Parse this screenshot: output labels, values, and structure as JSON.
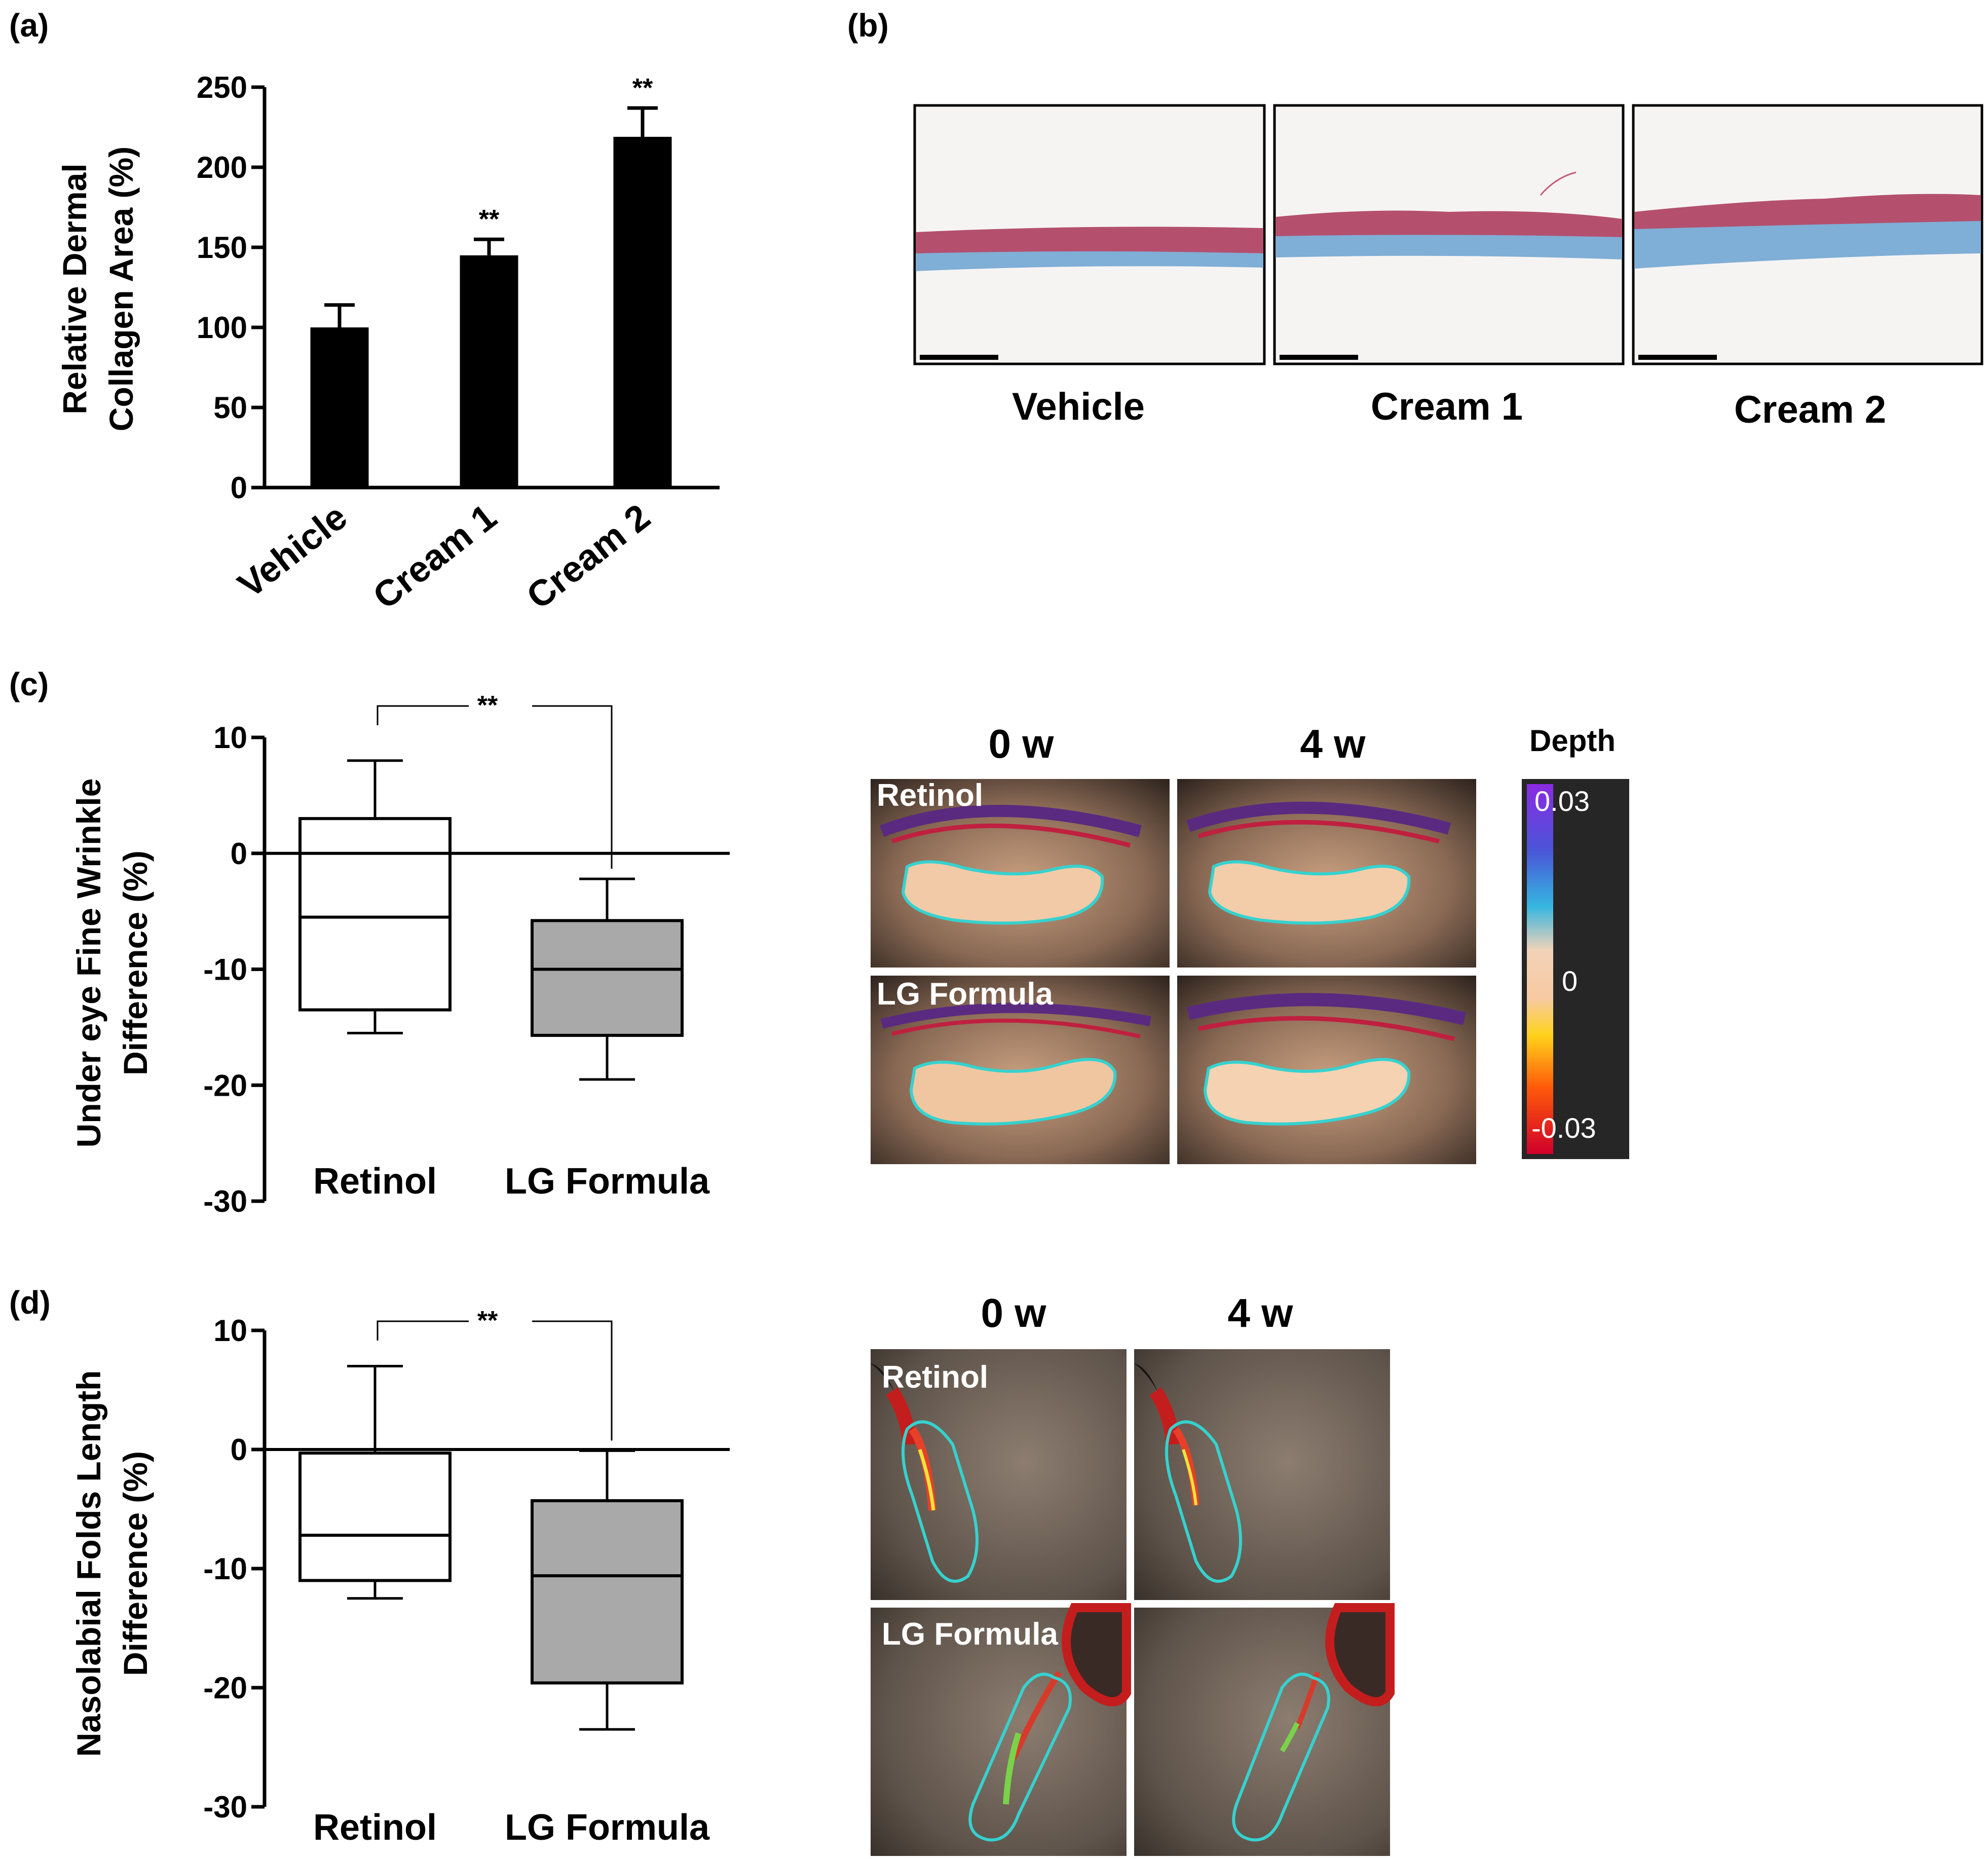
{
  "panel_labels": {
    "a": "(a)",
    "b": "(b)",
    "c": "(c)",
    "d": "(d)"
  },
  "chart_data": [
    {
      "type": "bar",
      "panel": "(a)",
      "categories": [
        "Vehicle",
        "Cream 1",
        "Cream 2"
      ],
      "values": [
        100,
        145,
        219
      ],
      "errors": [
        14,
        10,
        18
      ],
      "significance": [
        "",
        "**",
        "**"
      ],
      "ylabel_line1": "Relative Dermal",
      "ylabel_line2": "Collagen Area (%)",
      "ylim": [
        0,
        250
      ],
      "yticks": [
        0,
        50,
        100,
        150,
        200,
        250
      ],
      "colors": {
        "bar": "#000000"
      }
    },
    {
      "type": "boxplot",
      "panel": "(c)",
      "categories": [
        "Retinol",
        "LG Formula"
      ],
      "boxes": [
        {
          "whisker_low": -15.5,
          "q1": -13.5,
          "median": -5.5,
          "q3": 3,
          "whisker_high": 8
        },
        {
          "whisker_low": -19.5,
          "q1": -15.7,
          "median": -10,
          "q3": -5.8,
          "whisker_high": -2.2
        }
      ],
      "ylabel_line1": "Under eye Fine Wrinkle",
      "ylabel_line2": "Difference (%)",
      "ylim": [
        -30,
        10
      ],
      "yticks": [
        10,
        0,
        -10,
        -20,
        -30
      ],
      "significance": "**",
      "colors": {
        "box1": "#ffffff",
        "box2": "#a9a9a9"
      }
    },
    {
      "type": "boxplot",
      "panel": "(d)",
      "categories": [
        "Retinol",
        "LG Formula"
      ],
      "boxes": [
        {
          "whisker_low": -12.5,
          "q1": -11,
          "median": -7.2,
          "q3": -0.3,
          "whisker_high": 7
        },
        {
          "whisker_low": -23.5,
          "q1": -19.6,
          "median": -10.6,
          "q3": -4.3,
          "whisker_high": -0.1
        }
      ],
      "ylabel_line1": "Nasolabial Folds Length",
      "ylabel_line2": "Difference (%)",
      "ylim": [
        -30,
        10
      ],
      "yticks": [
        10,
        0,
        -10,
        -20,
        -30
      ],
      "significance": "**",
      "colors": {
        "box1": "#ffffff",
        "box2": "#a9a9a9"
      }
    }
  ],
  "histology": {
    "labels": [
      "Vehicle",
      "Cream 1",
      "Cream 2"
    ],
    "colors": {
      "epidermis": "#b4506e",
      "dermis": "#7faed6",
      "background": "#f6f4f3"
    }
  },
  "eye_images": {
    "time_labels": [
      "0 w",
      "4 w"
    ],
    "row_labels": [
      "Retinol",
      "LG Formula"
    ],
    "colorbar": {
      "title": "Depth",
      "max": "0.03",
      "mid": "0",
      "min": "-0.03"
    }
  },
  "fold_images": {
    "time_labels": [
      "0 w",
      "4 w"
    ],
    "row_labels": [
      "Retinol",
      "LG Formula"
    ]
  }
}
